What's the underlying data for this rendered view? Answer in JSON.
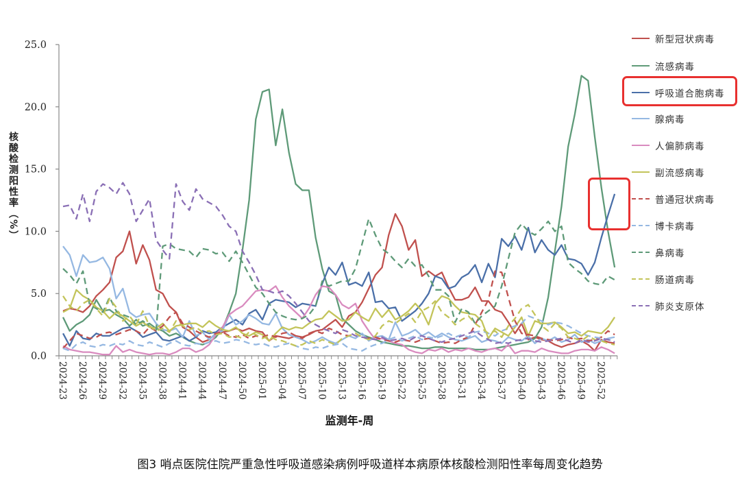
{
  "chart_data": {
    "type": "line",
    "title": "图3 哨点医院住院严重急性呼吸道感染病例呼吸道样本病原体核酸检测阳性率每周变化趋势",
    "xlabel": "监测年-周",
    "ylabel": "核酸检测阳性率（%）",
    "ylim": [
      0,
      25
    ],
    "yticks": [
      "0.0",
      "5.0",
      "10.0",
      "15.0",
      "20.0",
      "25.0"
    ],
    "grid": false,
    "legend_position": "right",
    "x": [
      "2024-23",
      "2024-24",
      "2024-25",
      "2024-26",
      "2024-27",
      "2024-28",
      "2024-29",
      "2024-30",
      "2024-31",
      "2024-32",
      "2024-33",
      "2024-34",
      "2024-35",
      "2024-36",
      "2024-37",
      "2024-38",
      "2024-39",
      "2024-40",
      "2024-41",
      "2024-42",
      "2024-43",
      "2024-44",
      "2024-45",
      "2024-46",
      "2024-47",
      "2024-48",
      "2024-49",
      "2024-50",
      "2024-51",
      "2024-52",
      "2025-01",
      "2025-02",
      "2025-03",
      "2025-04",
      "2025-05",
      "2025-06",
      "2025-07",
      "2025-08",
      "2025-09",
      "2025-10",
      "2025-11",
      "2025-12",
      "2025-13",
      "2025-14",
      "2025-15",
      "2025-16",
      "2025-17",
      "2025-18",
      "2025-19",
      "2025-20",
      "2025-21",
      "2025-22",
      "2025-23",
      "2025-24",
      "2025-25",
      "2025-26",
      "2025-27",
      "2025-28",
      "2025-29",
      "2025-30",
      "2025-31",
      "2025-32",
      "2025-33",
      "2025-34",
      "2025-35",
      "2025-36",
      "2025-37",
      "2025-38",
      "2025-39",
      "2025-40",
      "2025-41",
      "2025-42",
      "2025-43",
      "2025-44",
      "2025-45",
      "2025-46",
      "2025-47",
      "2025-48",
      "2025-49",
      "2025-50",
      "2025-51",
      "2025-52",
      "2026-01",
      "2026-02"
    ],
    "tick_labels": [
      "2024-23",
      "2024-26",
      "2024-29",
      "2024-32",
      "2024-35",
      "2024-38",
      "2024-41",
      "2024-44",
      "2024-47",
      "2024-50",
      "2025-01",
      "2025-04",
      "2025-07",
      "2025-10",
      "2025-13",
      "2025-16",
      "2025-19",
      "2025-22",
      "2025-25",
      "2025-28",
      "2025-31",
      "2025-34",
      "2025-37",
      "2025-40",
      "2025-43",
      "2025-46",
      "2025-49",
      "2025-52"
    ],
    "series": [
      {
        "name": "新型冠状病毒",
        "color": "#c0504d",
        "dashed": false,
        "highlight": false,
        "values": [
          3.6,
          3.8,
          3.7,
          3.5,
          4.0,
          4.8,
          5.3,
          5.9,
          7.9,
          8.4,
          10.0,
          7.4,
          8.9,
          7.7,
          5.3,
          5.0,
          4.0,
          3.5,
          2.3,
          2.0,
          1.5,
          1.1,
          1.3,
          1.8,
          1.9,
          2.0,
          2.2,
          2.0,
          2.2,
          2.0,
          1.9,
          1.2,
          1.6,
          1.5,
          1.4,
          1.6,
          1.5,
          1.7,
          2.0,
          2.1,
          2.5,
          2.9,
          2.3,
          3.2,
          3.5,
          4.3,
          5.4,
          6.5,
          7.1,
          9.7,
          11.4,
          10.4,
          8.5,
          9.3,
          6.4,
          6.8,
          6.4,
          6.7,
          5.5,
          4.5,
          4.5,
          4.7,
          5.5,
          4.4,
          4.4,
          3.7,
          3.5,
          2.7,
          1.8,
          2.6,
          1.3,
          1.5,
          1.3,
          1.2,
          0.9,
          0.7,
          0.9,
          1.0,
          1.2,
          0.9,
          0.4,
          1.3,
          1.1,
          1.0
        ]
      },
      {
        "name": "流感病毒",
        "color": "#5e9a78",
        "dashed": false,
        "highlight": false,
        "values": [
          3.1,
          2.0,
          2.5,
          2.8,
          3.3,
          4.5,
          3.6,
          3.7,
          3.3,
          3.0,
          2.4,
          2.9,
          2.4,
          2.6,
          2.2,
          2.0,
          1.6,
          1.8,
          1.5,
          1.2,
          1.0,
          0.9,
          1.1,
          1.5,
          2.2,
          3.5,
          5.0,
          8.5,
          12.5,
          19.0,
          21.2,
          21.4,
          16.9,
          19.8,
          16.3,
          13.8,
          13.3,
          13.3,
          9.5,
          7.0,
          5.2,
          4.9,
          3.0,
          2.5,
          2.0,
          1.7,
          1.5,
          1.3,
          1.1,
          1.0,
          0.9,
          0.8,
          0.8,
          0.7,
          0.6,
          0.6,
          0.7,
          0.7,
          0.6,
          0.6,
          0.6,
          0.6,
          0.5,
          0.5,
          0.5,
          0.6,
          0.7,
          0.8,
          0.9,
          1.0,
          1.1,
          1.4,
          2.3,
          4.7,
          8.4,
          12.0,
          16.8,
          19.4,
          22.5,
          22.1,
          17.6,
          13.5,
          10.0,
          7.1
        ]
      },
      {
        "name": "呼吸道合胞病毒",
        "color": "#4a6fa8",
        "dashed": false,
        "highlight": true,
        "values": [
          1.8,
          0.8,
          2.0,
          1.4,
          1.3,
          1.8,
          1.6,
          1.6,
          1.9,
          2.2,
          2.3,
          2.0,
          1.5,
          1.7,
          1.9,
          1.3,
          1.2,
          1.4,
          1.6,
          1.2,
          1.5,
          2.0,
          1.8,
          1.9,
          2.3,
          2.6,
          2.9,
          2.5,
          3.4,
          3.7,
          2.9,
          4.2,
          4.5,
          4.4,
          4.3,
          3.9,
          4.2,
          4.1,
          4.0,
          5.8,
          7.1,
          6.5,
          7.5,
          5.7,
          5.9,
          5.6,
          6.7,
          4.3,
          4.4,
          3.8,
          3.9,
          2.8,
          3.2,
          3.6,
          4.2,
          5.0,
          6.4,
          6.2,
          5.4,
          5.6,
          6.3,
          6.6,
          7.3,
          5.9,
          7.4,
          6.3,
          9.4,
          8.8,
          9.6,
          8.5,
          10.3,
          8.3,
          9.3,
          8.5,
          8.1,
          8.9,
          7.8,
          7.7,
          7.4,
          6.5,
          7.5,
          9.5,
          11.3,
          13.0
        ]
      },
      {
        "name": "腺病毒",
        "color": "#95b8e2",
        "dashed": false,
        "highlight": false,
        "values": [
          8.8,
          8.1,
          6.4,
          8.1,
          7.5,
          7.6,
          7.9,
          7.0,
          4.6,
          5.4,
          3.5,
          3.1,
          3.3,
          3.4,
          2.6,
          2.1,
          2.0,
          2.2,
          1.5,
          2.8,
          1.6,
          1.9,
          1.3,
          1.8,
          2.0,
          3.3,
          2.5,
          2.8,
          3.3,
          3.0,
          2.6,
          2.5,
          3.4,
          2.2,
          1.7,
          1.5,
          1.3,
          1.0,
          1.2,
          1.5,
          1.2,
          1.0,
          1.3,
          1.6,
          1.4,
          1.8,
          1.2,
          1.5,
          1.6,
          1.3,
          2.7,
          1.6,
          1.8,
          2.1,
          1.6,
          1.9,
          1.5,
          1.8,
          1.5,
          1.3,
          1.2,
          1.4,
          1.6,
          1.1,
          1.3,
          1.2,
          1.0,
          1.5,
          1.3,
          1.2,
          1.6,
          1.0,
          1.4,
          1.2,
          1.5,
          1.1,
          1.3,
          1.7,
          1.1,
          1.3,
          1.0,
          1.2,
          1.4,
          1.5
        ]
      },
      {
        "name": "人偏肺病毒",
        "color": "#d98bbf",
        "dashed": false,
        "highlight": false,
        "values": [
          0.8,
          0.5,
          0.4,
          0.3,
          0.3,
          0.2,
          0.1,
          0.1,
          0.8,
          0.3,
          0.5,
          0.3,
          0.2,
          0.1,
          0.2,
          0.2,
          0.1,
          0.3,
          0.6,
          0.6,
          0.3,
          0.5,
          0.9,
          1.7,
          2.3,
          3.3,
          3.7,
          4.0,
          4.6,
          5.2,
          5.3,
          5.2,
          5.6,
          4.7,
          4.0,
          3.5,
          3.0,
          3.8,
          4.9,
          5.6,
          5.5,
          4.9,
          4.1,
          3.8,
          4.2,
          2.8,
          2.0,
          1.3,
          1.4,
          1.2,
          1.0,
          0.9,
          0.5,
          0.3,
          0.2,
          0.5,
          0.4,
          0.6,
          0.3,
          0.5,
          0.4,
          0.6,
          0.4,
          0.3,
          0.5,
          0.6,
          0.4,
          0.9,
          0.2,
          0.4,
          0.4,
          0.3,
          0.6,
          0.4,
          0.3,
          0.2,
          0.2,
          0.4,
          0.5,
          0.5,
          0.4,
          0.7,
          0.5,
          0.2
        ]
      },
      {
        "name": "副流感病毒",
        "color": "#c3c45a",
        "dashed": false,
        "highlight": false,
        "values": [
          3.5,
          3.8,
          5.3,
          4.8,
          4.5,
          3.9,
          3.6,
          3.0,
          3.5,
          3.2,
          2.8,
          2.4,
          2.7,
          2.3,
          2.2,
          2.6,
          2.0,
          2.4,
          2.5,
          2.6,
          2.6,
          2.3,
          2.8,
          2.4,
          2.1,
          2.0,
          2.3,
          1.8,
          1.6,
          1.9,
          1.7,
          1.2,
          1.8,
          2.3,
          2.1,
          2.3,
          2.2,
          2.6,
          2.9,
          3.0,
          3.6,
          3.2,
          2.8,
          2.9,
          3.5,
          3.1,
          2.8,
          3.8,
          3.1,
          3.7,
          2.9,
          3.2,
          3.6,
          4.2,
          3.6,
          2.5,
          4.2,
          4.8,
          4.6,
          4.0,
          3.5,
          3.4,
          3.3,
          2.8,
          1.4,
          2.2,
          1.9,
          1.6,
          2.3,
          3.1,
          1.6,
          2.8,
          2.6,
          2.6,
          2.7,
          2.3,
          1.8,
          1.9,
          1.6,
          2.0,
          1.9,
          1.8,
          2.3,
          3.1
        ]
      },
      {
        "name": "普通冠状病毒",
        "color": "#c0504d",
        "dashed": true,
        "highlight": false,
        "values": [
          0.6,
          1.2,
          1.8,
          1.6,
          1.4,
          1.5,
          1.8,
          1.9,
          1.7,
          1.9,
          2.1,
          2.0,
          1.7,
          2.3,
          2.0,
          2.4,
          3.1,
          3.5,
          2.6,
          2.3,
          2.0,
          1.7,
          1.5,
          1.8,
          1.9,
          1.6,
          1.5,
          1.7,
          1.4,
          1.6,
          1.5,
          1.7,
          1.5,
          1.8,
          1.9,
          1.6,
          1.4,
          1.8,
          2.0,
          1.8,
          2.2,
          2.0,
          1.7,
          1.6,
          1.8,
          1.5,
          1.4,
          1.5,
          1.3,
          1.2,
          1.1,
          1.3,
          1.2,
          1.1,
          1.3,
          1.4,
          1.2,
          1.0,
          1.1,
          1.0,
          1.3,
          1.5,
          2.5,
          3.5,
          4.5,
          6.8,
          6.7,
          4.7,
          2.8,
          1.8,
          1.7,
          1.6,
          1.4,
          1.3,
          1.2,
          1.3,
          1.5,
          1.3,
          1.4,
          1.2,
          1.3,
          1.5,
          2.0,
          1.7
        ]
      },
      {
        "name": "博卡病毒",
        "color": "#95b8e2",
        "dashed": true,
        "highlight": false,
        "values": [
          0.6,
          0.4,
          0.9,
          1.1,
          0.8,
          0.7,
          0.9,
          0.8,
          1.0,
          0.9,
          1.2,
          0.9,
          0.8,
          1.1,
          0.9,
          0.7,
          1.0,
          1.2,
          0.9,
          0.8,
          1.0,
          0.9,
          1.1,
          1.2,
          1.0,
          1.1,
          1.3,
          1.2,
          1.0,
          0.9,
          1.0,
          0.8,
          0.7,
          0.9,
          1.0,
          0.8,
          0.6,
          0.5,
          0.7,
          0.6,
          0.8,
          0.9,
          1.0,
          0.6,
          0.5,
          0.4,
          0.7,
          0.9,
          1.0,
          1.3,
          1.5,
          1.2,
          1.4,
          1.6,
          1.3,
          1.5,
          1.4,
          1.6,
          1.8,
          1.5,
          1.7,
          1.5,
          1.9,
          2.0,
          1.8,
          1.6,
          2.0,
          2.2,
          2.4,
          2.6,
          3.2,
          3.0,
          2.8,
          2.5,
          2.7,
          2.6,
          2.4,
          2.1,
          1.8,
          1.6,
          1.5,
          1.4,
          1.3,
          1.2
        ]
      },
      {
        "name": "鼻病毒",
        "color": "#5e9a78",
        "dashed": true,
        "highlight": false,
        "values": [
          7.0,
          6.5,
          5.8,
          6.8,
          4.1,
          3.8,
          3.5,
          4.7,
          3.6,
          3.3,
          3.1,
          2.5,
          2.8,
          2.4,
          2.0,
          8.8,
          9.0,
          8.6,
          8.5,
          8.4,
          7.9,
          8.6,
          8.5,
          8.2,
          8.3,
          7.6,
          8.4,
          7.5,
          6.5,
          5.5,
          5.0,
          4.2,
          3.5,
          3.2,
          3.0,
          2.9,
          3.0,
          3.3,
          4.0,
          6.0,
          5.6,
          5.8,
          6.0,
          6.0,
          7.0,
          9.0,
          11.0,
          9.7,
          8.6,
          8.2,
          7.6,
          7.1,
          7.8,
          7.2,
          7.3,
          6.4,
          5.3,
          5.3,
          4.8,
          2.7,
          3.8,
          3.5,
          2.6,
          3.2,
          3.6,
          4.0,
          5.6,
          7.8,
          9.9,
          10.6,
          10.0,
          9.7,
          10.2,
          10.8,
          10.0,
          10.4,
          7.5,
          7.0,
          6.6,
          6.0,
          5.8,
          5.7,
          6.4,
          6.1
        ]
      },
      {
        "name": "肠道病毒",
        "color": "#c3c45a",
        "dashed": true,
        "highlight": false,
        "values": [
          4.8,
          4.0,
          3.6,
          4.2,
          4.5,
          3.8,
          3.2,
          4.6,
          3.9,
          2.8,
          3.2,
          2.5,
          3.6,
          2.4,
          2.0,
          2.2,
          1.9,
          2.8,
          2.4,
          2.1,
          2.3,
          1.9,
          2.0,
          1.7,
          1.8,
          1.5,
          1.6,
          1.4,
          1.9,
          1.7,
          1.4,
          1.6,
          1.3,
          1.2,
          1.0,
          0.8,
          0.9,
          1.2,
          1.0,
          1.3,
          1.1,
          0.9,
          1.4,
          1.6,
          1.8,
          1.5,
          1.3,
          1.6,
          2.4,
          2.8,
          2.6,
          3.0,
          3.4,
          2.7,
          3.6,
          3.9,
          4.4,
          3.5,
          3.1,
          2.5,
          2.9,
          3.2,
          2.6,
          2.2,
          1.8,
          2.0,
          1.5,
          2.4,
          3.0,
          3.8,
          4.1,
          3.3,
          2.4,
          2.0,
          2.6,
          2.2,
          1.5,
          1.4,
          1.2,
          1.6,
          1.3,
          1.2,
          1.0,
          0.9
        ]
      },
      {
        "name": "肺炎支原体",
        "color": "#8a6fb5",
        "dashed": true,
        "highlight": false,
        "values": [
          12.0,
          12.1,
          11.0,
          13.0,
          10.8,
          13.2,
          13.8,
          13.5,
          13.0,
          13.9,
          13.0,
          10.8,
          11.7,
          12.6,
          9.3,
          8.5,
          7.8,
          13.8,
          12.4,
          11.7,
          13.4,
          12.6,
          12.3,
          12.0,
          11.3,
          10.4,
          10.0,
          8.4,
          7.5,
          6.5,
          5.3,
          5.2,
          5.0,
          5.2,
          4.8,
          4.2,
          3.5,
          2.8,
          2.5,
          2.2,
          2.0,
          1.8,
          2.1,
          1.9,
          1.6,
          1.5,
          1.4,
          1.3,
          1.5,
          1.2,
          1.3,
          1.4,
          1.2,
          1.5,
          1.6,
          1.4,
          1.2,
          1.1,
          1.3,
          1.4,
          1.6,
          1.8,
          2.0,
          1.6,
          1.3,
          1.0,
          1.1,
          1.0,
          1.2,
          1.3,
          1.4,
          1.2,
          1.1,
          1.2,
          1.3,
          1.4,
          1.2,
          1.0,
          1.3,
          1.1,
          1.2,
          1.4,
          1.3,
          1.1
        ]
      }
    ]
  },
  "highlight_color": "#e8302f"
}
